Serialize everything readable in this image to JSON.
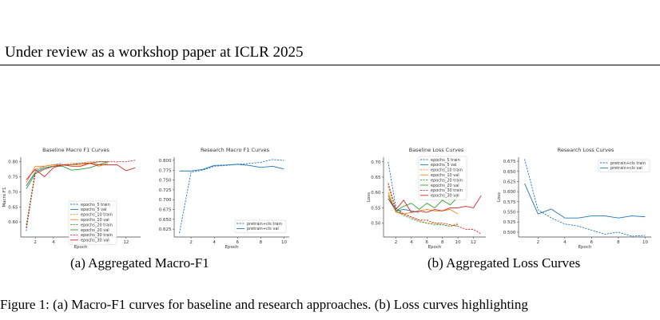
{
  "header": {
    "text": "Under review as a workshop paper at ICLR 2025"
  },
  "captions": {
    "a": "(a)  Aggregated Macro-F1",
    "b": "(b)  Aggregated Loss Curves"
  },
  "figure_caption": "Figure 1: (a) Macro-F1 curves for baseline and research approaches. (b) Loss curves highlighting",
  "colors": {
    "blue": "#1f77b4",
    "orange": "#ff7f0e",
    "green": "#2ca02c",
    "red": "#d62728"
  },
  "chart_data": [
    {
      "id": "baseline-f1",
      "type": "line",
      "title": "Baseline Macro F1 Curves",
      "xlabel": "Epoch",
      "ylabel": "Macro F1",
      "xlim": [
        0.4,
        13.6
      ],
      "ylim": [
        0.55,
        0.815
      ],
      "xticks": [
        2,
        4,
        6,
        8,
        10,
        12
      ],
      "yticks": [
        0.6,
        0.65,
        0.7,
        0.75,
        0.8
      ],
      "ytick_labels": [
        "0.60",
        "0.65",
        "0.70",
        "0.75",
        "0.80"
      ],
      "grid": false,
      "legend": "lower-right",
      "series": [
        {
          "name": "epochs_5 train",
          "color": "#1f77b4",
          "dash": true,
          "x": [
            1,
            2,
            3,
            4,
            5
          ],
          "y": [
            0.57,
            0.77,
            0.785,
            0.79,
            0.795
          ]
        },
        {
          "name": "epochs_5 val",
          "color": "#1f77b4",
          "dash": false,
          "x": [
            1,
            2,
            3,
            4,
            5
          ],
          "y": [
            0.72,
            0.765,
            0.78,
            0.785,
            0.788
          ]
        },
        {
          "name": "epochs_10 train",
          "color": "#ff7f0e",
          "dash": true,
          "x": [
            1,
            2,
            3,
            4,
            5,
            6,
            7,
            8,
            9,
            10
          ],
          "y": [
            0.58,
            0.775,
            0.785,
            0.79,
            0.79,
            0.795,
            0.795,
            0.8,
            0.8,
            0.8
          ]
        },
        {
          "name": "epochs_10 val",
          "color": "#ff7f0e",
          "dash": false,
          "x": [
            1,
            2,
            3,
            4,
            5,
            6,
            7,
            8,
            9,
            10
          ],
          "y": [
            0.73,
            0.785,
            0.785,
            0.79,
            0.788,
            0.79,
            0.79,
            0.795,
            0.785,
            0.795
          ]
        },
        {
          "name": "epochs_20 train",
          "color": "#2ca02c",
          "dash": true,
          "x": [
            1,
            2,
            3,
            4,
            5,
            6,
            7,
            8,
            9,
            10
          ],
          "y": [
            0.59,
            0.765,
            0.78,
            0.785,
            0.79,
            0.79,
            0.795,
            0.795,
            0.8,
            0.8
          ]
        },
        {
          "name": "epochs_20 val",
          "color": "#2ca02c",
          "dash": false,
          "x": [
            1,
            2,
            3,
            4,
            5,
            6,
            7,
            8,
            9,
            10
          ],
          "y": [
            0.71,
            0.76,
            0.775,
            0.785,
            0.785,
            0.772,
            0.775,
            0.78,
            0.79,
            0.8
          ]
        },
        {
          "name": "epochs_30 train",
          "color": "#d62728",
          "dash": true,
          "x": [
            1,
            2,
            3,
            4,
            5,
            6,
            7,
            8,
            9,
            10,
            11,
            12,
            13
          ],
          "y": [
            0.58,
            0.76,
            0.775,
            0.785,
            0.79,
            0.79,
            0.795,
            0.795,
            0.8,
            0.8,
            0.8,
            0.8,
            0.805
          ]
        },
        {
          "name": "epochs_30 val",
          "color": "#d62728",
          "dash": false,
          "x": [
            1,
            2,
            3,
            4,
            5,
            6,
            7,
            8,
            9,
            10,
            11,
            12,
            13
          ],
          "y": [
            0.74,
            0.775,
            0.75,
            0.78,
            0.79,
            0.785,
            0.785,
            0.795,
            0.79,
            0.79,
            0.79,
            0.77,
            0.78
          ]
        }
      ]
    },
    {
      "id": "research-f1",
      "type": "line",
      "title": "Research Macro F1 Curves",
      "xlabel": "Epoch",
      "ylabel": "",
      "xlim": [
        0.55,
        10.45
      ],
      "ylim": [
        0.605,
        0.808
      ],
      "xticks": [
        2,
        4,
        6,
        8,
        10
      ],
      "yticks": [
        0.625,
        0.65,
        0.675,
        0.7,
        0.725,
        0.75,
        0.775,
        0.8
      ],
      "ytick_labels": [
        "0.625",
        "0.650",
        "0.675",
        "0.700",
        "0.725",
        "0.750",
        "0.775",
        "0.800"
      ],
      "grid": false,
      "legend": "lower-right",
      "series": [
        {
          "name": "pretrain+cls train",
          "color": "#1f77b4",
          "dash": true,
          "x": [
            1,
            2,
            3,
            4,
            5,
            6,
            7,
            8,
            9,
            10
          ],
          "y": [
            0.615,
            0.77,
            0.775,
            0.785,
            0.787,
            0.79,
            0.792,
            0.795,
            0.802,
            0.8
          ]
        },
        {
          "name": "pretrain+cls val",
          "color": "#1f77b4",
          "dash": false,
          "x": [
            1,
            2,
            3,
            4,
            5,
            6,
            7,
            8,
            9,
            10
          ],
          "y": [
            0.773,
            0.773,
            0.777,
            0.787,
            0.788,
            0.79,
            0.787,
            0.782,
            0.785,
            0.778
          ]
        }
      ]
    },
    {
      "id": "baseline-loss",
      "type": "line",
      "title": "Baseline Loss Curves",
      "xlabel": "Epoch",
      "ylabel": "Loss",
      "xlim": [
        0.4,
        13.6
      ],
      "ylim": [
        0.455,
        0.715
      ],
      "xticks": [
        2,
        4,
        6,
        8,
        10,
        12
      ],
      "yticks": [
        0.5,
        0.55,
        0.6,
        0.65,
        0.7
      ],
      "ytick_labels": [
        "0.50",
        "0.55",
        "0.60",
        "0.65",
        "0.70"
      ],
      "grid": false,
      "legend": "upper-right",
      "series": [
        {
          "name": "epochs_5 train",
          "color": "#1f77b4",
          "dash": true,
          "x": [
            1,
            2,
            3,
            4,
            5
          ],
          "y": [
            0.7,
            0.55,
            0.53,
            0.52,
            0.51
          ]
        },
        {
          "name": "epochs_5 val",
          "color": "#1f77b4",
          "dash": false,
          "x": [
            1,
            2,
            3,
            4,
            5
          ],
          "y": [
            0.58,
            0.54,
            0.545,
            0.54,
            0.535
          ]
        },
        {
          "name": "epochs_10 train",
          "color": "#ff7f0e",
          "dash": true,
          "x": [
            1,
            2,
            3,
            4,
            5,
            6,
            7,
            8,
            9,
            10
          ],
          "y": [
            0.62,
            0.54,
            0.53,
            0.52,
            0.51,
            0.5,
            0.5,
            0.495,
            0.49,
            0.5
          ]
        },
        {
          "name": "epochs_10 val",
          "color": "#ff7f0e",
          "dash": false,
          "x": [
            1,
            2,
            3,
            4,
            5,
            6,
            7,
            8,
            9,
            10
          ],
          "y": [
            0.6,
            0.535,
            0.53,
            0.535,
            0.54,
            0.545,
            0.54,
            0.54,
            0.545,
            0.53
          ]
        },
        {
          "name": "epochs_20 train",
          "color": "#2ca02c",
          "dash": true,
          "x": [
            1,
            2,
            3,
            4,
            5,
            6,
            7,
            8,
            9,
            10
          ],
          "y": [
            0.63,
            0.54,
            0.525,
            0.515,
            0.505,
            0.5,
            0.495,
            0.495,
            0.49,
            0.495
          ]
        },
        {
          "name": "epochs_20 val",
          "color": "#2ca02c",
          "dash": false,
          "x": [
            1,
            2,
            3,
            4,
            5,
            6,
            7,
            8,
            9,
            10
          ],
          "y": [
            0.59,
            0.54,
            0.555,
            0.565,
            0.545,
            0.565,
            0.55,
            0.575,
            0.56,
            0.585
          ]
        },
        {
          "name": "epochs_30 train",
          "color": "#d62728",
          "dash": true,
          "x": [
            1,
            2,
            3,
            4,
            5,
            6,
            7,
            8,
            9,
            10,
            11,
            12,
            13
          ],
          "y": [
            0.63,
            0.545,
            0.53,
            0.52,
            0.51,
            0.51,
            0.5,
            0.5,
            0.495,
            0.49,
            0.48,
            0.48,
            0.465
          ]
        },
        {
          "name": "epochs_30 val",
          "color": "#d62728",
          "dash": false,
          "x": [
            1,
            2,
            3,
            4,
            5,
            6,
            7,
            8,
            9,
            10,
            11,
            12,
            13
          ],
          "y": [
            0.58,
            0.545,
            0.575,
            0.535,
            0.54,
            0.535,
            0.545,
            0.54,
            0.55,
            0.55,
            0.555,
            0.55,
            0.59
          ]
        }
      ]
    },
    {
      "id": "research-loss",
      "type": "line",
      "title": "Research Loss Curves",
      "xlabel": "Epoch",
      "ylabel": "Loss",
      "xlim": [
        0.55,
        10.45
      ],
      "ylim": [
        0.488,
        0.685
      ],
      "xticks": [
        2,
        4,
        6,
        8,
        10
      ],
      "yticks": [
        0.5,
        0.525,
        0.55,
        0.575,
        0.6,
        0.625,
        0.65,
        0.675
      ],
      "ytick_labels": [
        "0.500",
        "0.525",
        "0.550",
        "0.575",
        "0.600",
        "0.625",
        "0.650",
        "0.675"
      ],
      "grid": false,
      "legend": "upper-right",
      "series": [
        {
          "name": "pretrain+cls train",
          "color": "#1f77b4",
          "dash": true,
          "x": [
            1,
            2,
            3,
            4,
            5,
            6,
            7,
            8,
            9,
            10
          ],
          "y": [
            0.68,
            0.555,
            0.535,
            0.52,
            0.515,
            0.505,
            0.495,
            0.5,
            0.49,
            0.492
          ]
        },
        {
          "name": "pretrain+cls val",
          "color": "#1f77b4",
          "dash": false,
          "x": [
            1,
            2,
            3,
            4,
            5,
            6,
            7,
            8,
            9,
            10
          ],
          "y": [
            0.62,
            0.545,
            0.557,
            0.535,
            0.535,
            0.54,
            0.54,
            0.535,
            0.54,
            0.538
          ]
        }
      ]
    }
  ]
}
